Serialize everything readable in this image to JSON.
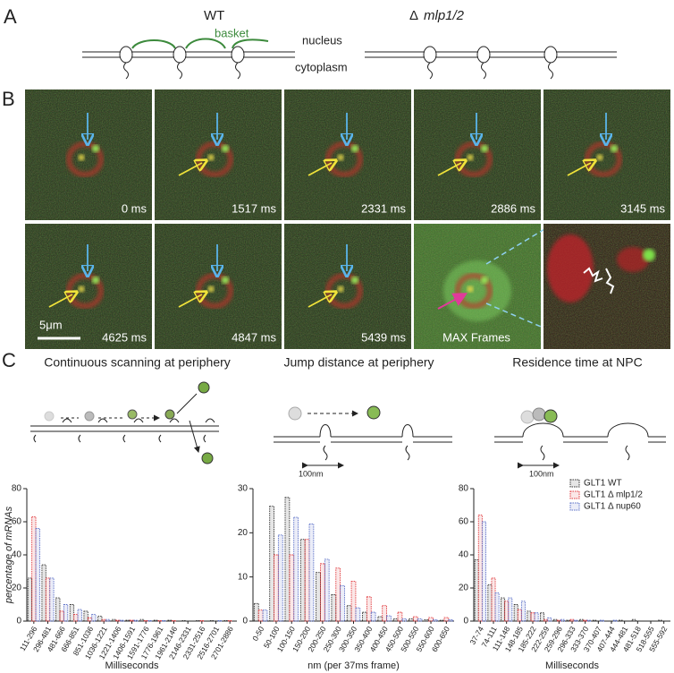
{
  "panel_a": {
    "label": "A",
    "wt": "WT",
    "mutant_symbol": "Δ",
    "mutant": "mlp1/2",
    "basket": "basket",
    "nucleus": "nucleus",
    "cytoplasm": "cytoplasm"
  },
  "panel_b": {
    "label": "B",
    "frames": [
      "0 ms",
      "1517 ms",
      "2331 ms",
      "2886 ms",
      "3145 ms",
      "4625 ms",
      "4847 ms",
      "5439 ms",
      "MAX Frames"
    ],
    "scale_bar": "5μm"
  },
  "panel_c": {
    "label": "C",
    "scale_labels": [
      "100nm",
      "100nm"
    ]
  },
  "chart_data": [
    {
      "type": "bar",
      "title": "Continuous scanning at periphery",
      "ylabel": "percentage of mRNAs",
      "xlabel": "Milliseconds",
      "categories": [
        "111-296",
        "296-481",
        "481-666",
        "666-851",
        "851-1036",
        "1036-1221",
        "1221-1406",
        "1406-1591",
        "1591-1776",
        "1776-1961",
        "1961-2146",
        "2146-2331",
        "2331-2516",
        "2516-2701",
        "2701-2886"
      ],
      "series": [
        {
          "color": "#333333",
          "values": [
            26,
            34,
            14,
            10,
            6,
            3,
            1,
            0.5,
            1,
            0.5,
            0.5,
            0.3,
            0.3,
            0.3,
            0.3
          ]
        },
        {
          "color": "#e0373b",
          "values": [
            63,
            26,
            6,
            4,
            2,
            1,
            0.5,
            0.5,
            0.3,
            0.3,
            0.3,
            0,
            0.3,
            0,
            0.3
          ]
        },
        {
          "color": "#5a6fc7",
          "values": [
            56,
            26,
            10,
            7,
            4,
            1,
            0.5,
            0.5,
            0.3,
            0.3,
            0,
            0,
            0,
            0.3,
            0
          ]
        }
      ],
      "ylim": [
        0,
        80
      ],
      "yticks": [
        0,
        20,
        40,
        60,
        80
      ]
    },
    {
      "type": "bar",
      "title": "Jump distance at periphery",
      "xlabel": "nm (per 37ms frame)",
      "categories": [
        "0-50",
        "50-100",
        "100-150",
        "150-200",
        "200-250",
        "250-300",
        "300-350",
        "350-400",
        "400-450",
        "450-500",
        "500-550",
        "550-600",
        "600-650"
      ],
      "series": [
        {
          "color": "#333333",
          "values": [
            4,
            26,
            28,
            18.5,
            11,
            6,
            3.5,
            2,
            1,
            0.5,
            0.5,
            0.3,
            0.2
          ]
        },
        {
          "color": "#e0373b",
          "values": [
            2.5,
            15,
            15,
            18.5,
            13,
            12,
            9,
            5.5,
            3.5,
            2,
            1,
            0.8,
            0.8
          ]
        },
        {
          "color": "#5a6fc7",
          "values": [
            2.5,
            19.5,
            23.5,
            22,
            14,
            8,
            3,
            2,
            1.2,
            0.5,
            0.5,
            0.3,
            0.3
          ]
        }
      ],
      "ylim": [
        0,
        30
      ],
      "yticks": [
        0,
        10,
        20,
        30
      ]
    },
    {
      "type": "bar",
      "title": "Residence time at NPC",
      "xlabel": "Milliseconds",
      "categories": [
        "37-74",
        "74-111",
        "111-148",
        "148-185",
        "185-222",
        "222-259",
        "259-296",
        "296-333",
        "333-370",
        "370-407",
        "407-444",
        "444-481",
        "481-518",
        "518-555",
        "555-592"
      ],
      "series": [
        {
          "name": "GLT1 WT",
          "color": "#333333",
          "values": [
            37,
            22,
            14,
            10,
            6,
            5,
            1,
            0.5,
            1,
            0.5,
            0,
            0.5,
            1,
            0,
            0.5
          ]
        },
        {
          "name": "GLT1 Δ mlp1/2",
          "color": "#e0373b",
          "values": [
            64,
            26,
            12,
            7,
            5,
            1,
            0.5,
            1,
            0.5,
            0,
            0,
            0,
            0,
            0,
            0
          ]
        },
        {
          "name": "GLT1 Δ nup60",
          "color": "#5a6fc7",
          "values": [
            60,
            17,
            14,
            12,
            5,
            2,
            1,
            0.5,
            0.5,
            0.5,
            0.5,
            0,
            0,
            0,
            0
          ]
        }
      ],
      "ylim": [
        0,
        80
      ],
      "yticks": [
        0,
        20,
        40,
        60,
        80
      ],
      "legend": "upper right"
    }
  ]
}
